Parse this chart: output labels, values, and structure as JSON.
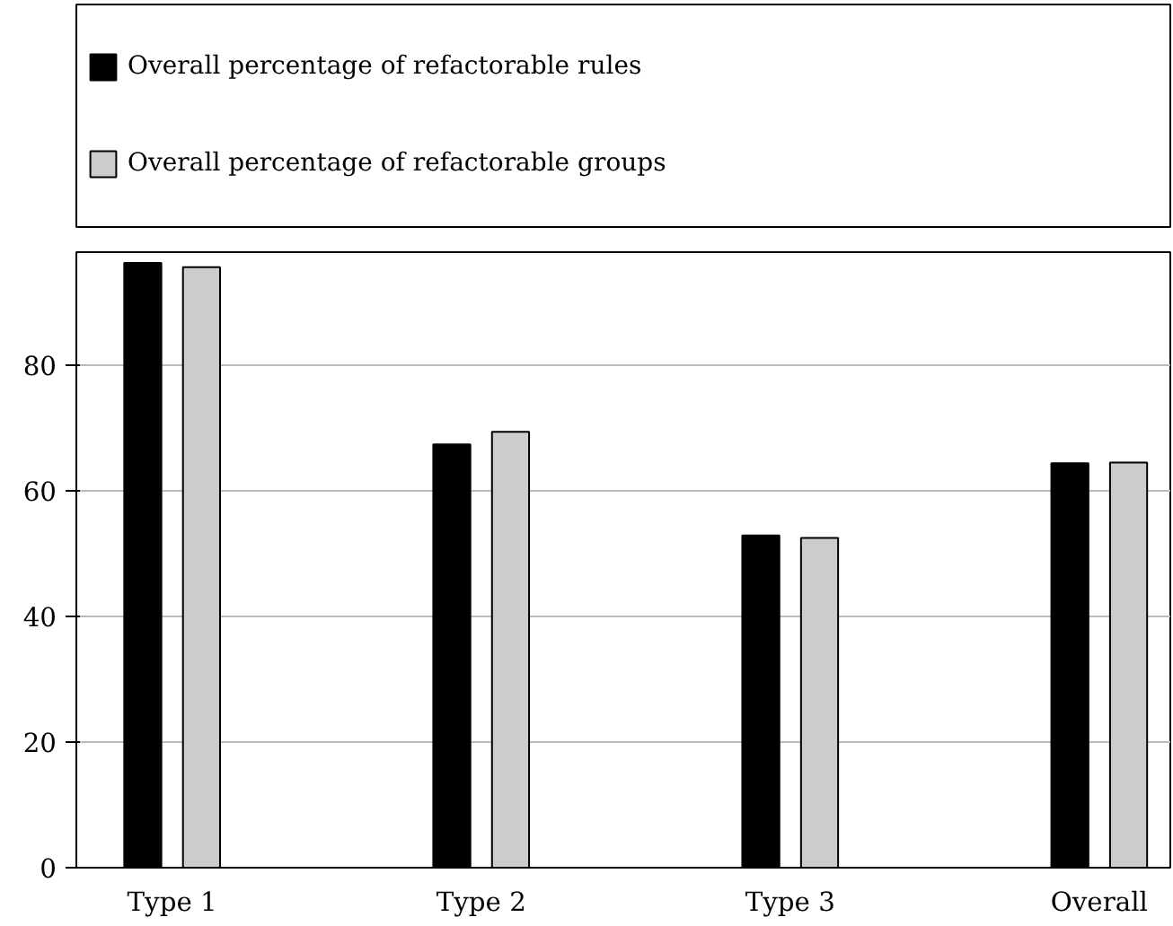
{
  "chart_data": {
    "type": "bar",
    "categories": [
      "Type 1",
      "Type 2",
      "Type 3",
      "Overall"
    ],
    "series": [
      {
        "name": "Overall percentage of refactorable rules",
        "color": "#000000",
        "values": [
          96.3,
          67.4,
          52.9,
          64.4
        ]
      },
      {
        "name": "Overall percentage of refactorable groups",
        "color": "#cccccc",
        "values": [
          95.6,
          69.4,
          52.5,
          64.5
        ]
      }
    ],
    "ylim": [
      0,
      98
    ],
    "yticks": [
      0,
      20,
      40,
      60,
      80
    ],
    "grid": "y",
    "legend": "top"
  }
}
